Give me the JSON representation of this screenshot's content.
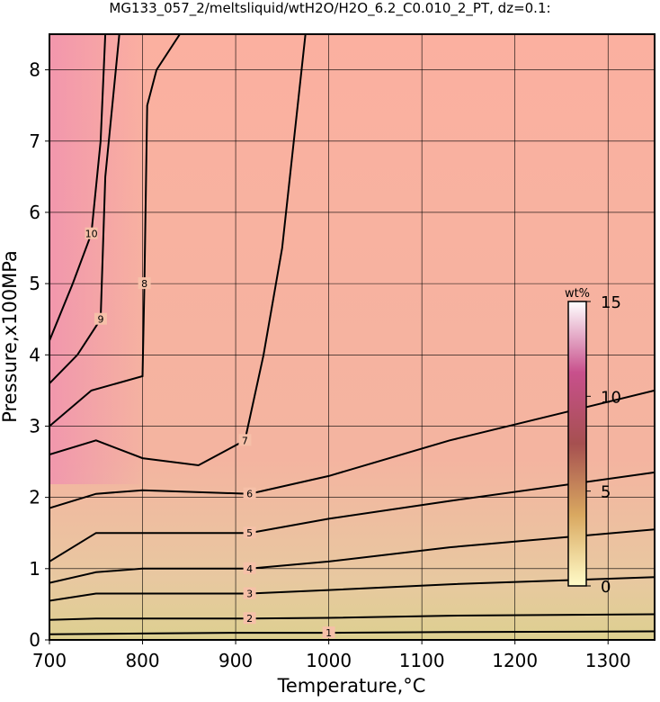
{
  "chart_data": {
    "type": "contour",
    "title": "MG133_057_2/meltsliquid/wtH2O/H2O_6.2_C0.010_2_PT, dz=0.1:",
    "x_label": "Temperature,°C",
    "y_label": "Pressure,x100MPa",
    "xlim": [
      700,
      1350
    ],
    "ylim": [
      0,
      8.5
    ],
    "xticks": [
      700,
      800,
      900,
      1000,
      1100,
      1200,
      1300
    ],
    "yticks": [
      0,
      1,
      2,
      3,
      4,
      5,
      6,
      7,
      8
    ],
    "grid": true,
    "contours": [
      {
        "level": 1,
        "x": [
          700,
          800,
          900,
          1000,
          1130,
          1350
        ],
        "y": [
          0.08,
          0.09,
          0.1,
          0.1,
          0.11,
          0.12
        ]
      },
      {
        "level": 2,
        "x": [
          700,
          750,
          800,
          915,
          1000,
          1130,
          1350
        ],
        "y": [
          0.28,
          0.3,
          0.3,
          0.3,
          0.31,
          0.34,
          0.36
        ]
      },
      {
        "level": 3,
        "x": [
          700,
          750,
          800,
          915,
          1000,
          1130,
          1350
        ],
        "y": [
          0.55,
          0.65,
          0.65,
          0.65,
          0.7,
          0.78,
          0.88
        ]
      },
      {
        "level": 4,
        "x": [
          700,
          750,
          800,
          915,
          1000,
          1130,
          1350
        ],
        "y": [
          0.8,
          0.95,
          1.0,
          1.0,
          1.1,
          1.3,
          1.55
        ]
      },
      {
        "level": 5,
        "x": [
          700,
          750,
          800,
          915,
          1000,
          1130,
          1350
        ],
        "y": [
          1.1,
          1.5,
          1.5,
          1.5,
          1.7,
          1.95,
          2.35
        ]
      },
      {
        "level": 6,
        "x": [
          700,
          750,
          800,
          915,
          1000,
          1130,
          1350
        ],
        "y": [
          1.85,
          2.05,
          2.1,
          2.05,
          2.3,
          2.8,
          3.5
        ]
      },
      {
        "level": 7,
        "x": [
          700,
          750,
          800,
          860,
          910,
          930,
          950,
          975
        ],
        "y": [
          2.6,
          2.8,
          2.55,
          2.45,
          2.8,
          4.0,
          5.5,
          8.5
        ]
      },
      {
        "level": 8,
        "x": [
          700,
          745,
          800,
          802,
          805,
          815,
          840
        ],
        "y": [
          3.0,
          3.5,
          3.7,
          5.0,
          7.5,
          8.0,
          8.5
        ]
      },
      {
        "level": 9,
        "x": [
          700,
          730,
          755,
          760,
          775
        ],
        "y": [
          3.6,
          4.0,
          4.5,
          6.5,
          8.5
        ]
      },
      {
        "level": 10,
        "x": [
          700,
          725,
          745,
          755,
          760
        ],
        "y": [
          4.2,
          5.0,
          5.7,
          7.0,
          8.5
        ]
      }
    ],
    "colorbar": {
      "label": "wt%",
      "lim": [
        0,
        15
      ],
      "ticks": [
        0,
        5,
        10,
        15
      ],
      "colors": [
        "#fffbc8",
        "#d9a860",
        "#a65050",
        "#c8508c",
        "#ffffff"
      ]
    }
  }
}
